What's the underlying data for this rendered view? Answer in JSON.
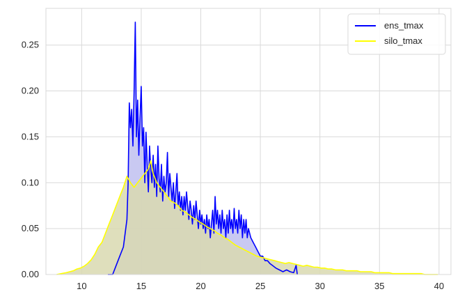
{
  "chart_data": {
    "type": "area",
    "title": "",
    "xlabel": "",
    "ylabel": "",
    "xlim": [
      7,
      41
    ],
    "ylim": [
      0,
      0.29
    ],
    "xticks": [
      10,
      15,
      20,
      25,
      30,
      35,
      40
    ],
    "yticks": [
      0.0,
      0.05,
      0.1,
      0.15,
      0.2,
      0.25
    ],
    "xtick_labels": [
      "10",
      "15",
      "20",
      "25",
      "30",
      "35",
      "40"
    ],
    "ytick_labels": [
      "0.00",
      "0.05",
      "0.10",
      "0.15",
      "0.20",
      "0.25"
    ],
    "grid": true,
    "legend_position": "top-right",
    "series": [
      {
        "name": "ens_tmax",
        "color": "#0000ff",
        "fill_color": "#bfbff0",
        "points": [
          [
            12.2,
            0.0
          ],
          [
            12.6,
            0.0
          ],
          [
            12.9,
            0.01
          ],
          [
            13.2,
            0.02
          ],
          [
            13.5,
            0.03
          ],
          [
            13.8,
            0.06
          ],
          [
            13.9,
            0.1
          ],
          [
            14.0,
            0.187
          ],
          [
            14.1,
            0.16
          ],
          [
            14.2,
            0.18
          ],
          [
            14.3,
            0.14
          ],
          [
            14.4,
            0.2
          ],
          [
            14.5,
            0.275
          ],
          [
            14.6,
            0.15
          ],
          [
            14.7,
            0.19
          ],
          [
            14.8,
            0.13
          ],
          [
            14.9,
            0.17
          ],
          [
            15.0,
            0.205
          ],
          [
            15.1,
            0.14
          ],
          [
            15.2,
            0.16
          ],
          [
            15.3,
            0.1
          ],
          [
            15.4,
            0.155
          ],
          [
            15.5,
            0.12
          ],
          [
            15.6,
            0.09
          ],
          [
            15.7,
            0.14
          ],
          [
            15.8,
            0.115
          ],
          [
            15.9,
            0.1
          ],
          [
            16.0,
            0.13
          ],
          [
            16.1,
            0.095
          ],
          [
            16.2,
            0.12
          ],
          [
            16.3,
            0.085
          ],
          [
            16.4,
            0.14
          ],
          [
            16.5,
            0.105
          ],
          [
            16.6,
            0.09
          ],
          [
            16.7,
            0.12
          ],
          [
            16.8,
            0.08
          ],
          [
            16.9,
            0.107
          ],
          [
            17.0,
            0.09
          ],
          [
            17.1,
            0.1
          ],
          [
            17.2,
            0.133
          ],
          [
            17.3,
            0.085
          ],
          [
            17.4,
            0.11
          ],
          [
            17.5,
            0.095
          ],
          [
            17.6,
            0.08
          ],
          [
            17.7,
            0.1
          ],
          [
            17.8,
            0.072
          ],
          [
            17.9,
            0.09
          ],
          [
            18.0,
            0.11
          ],
          [
            18.1,
            0.075
          ],
          [
            18.2,
            0.09
          ],
          [
            18.3,
            0.07
          ],
          [
            18.4,
            0.085
          ],
          [
            18.5,
            0.065
          ],
          [
            18.6,
            0.085
          ],
          [
            18.7,
            0.07
          ],
          [
            18.8,
            0.09
          ],
          [
            18.9,
            0.075
          ],
          [
            19.0,
            0.06
          ],
          [
            19.1,
            0.08
          ],
          [
            19.2,
            0.07
          ],
          [
            19.3,
            0.055
          ],
          [
            19.4,
            0.075
          ],
          [
            19.5,
            0.06
          ],
          [
            19.6,
            0.08
          ],
          [
            19.7,
            0.065
          ],
          [
            19.8,
            0.05
          ],
          [
            19.9,
            0.07
          ],
          [
            20.0,
            0.055
          ],
          [
            20.1,
            0.065
          ],
          [
            20.2,
            0.05
          ],
          [
            20.3,
            0.06
          ],
          [
            20.4,
            0.045
          ],
          [
            20.5,
            0.065
          ],
          [
            20.6,
            0.05
          ],
          [
            20.7,
            0.06
          ],
          [
            20.8,
            0.04
          ],
          [
            20.9,
            0.055
          ],
          [
            21.0,
            0.07
          ],
          [
            21.1,
            0.045
          ],
          [
            21.2,
            0.085
          ],
          [
            21.3,
            0.055
          ],
          [
            21.4,
            0.07
          ],
          [
            21.5,
            0.05
          ],
          [
            21.6,
            0.065
          ],
          [
            21.7,
            0.045
          ],
          [
            21.8,
            0.07
          ],
          [
            21.9,
            0.05
          ],
          [
            22.0,
            0.06
          ],
          [
            22.1,
            0.04
          ],
          [
            22.2,
            0.065
          ],
          [
            22.3,
            0.045
          ],
          [
            22.4,
            0.07
          ],
          [
            22.5,
            0.05
          ],
          [
            22.6,
            0.06
          ],
          [
            22.7,
            0.045
          ],
          [
            22.8,
            0.072
          ],
          [
            22.9,
            0.05
          ],
          [
            23.0,
            0.06
          ],
          [
            23.1,
            0.045
          ],
          [
            23.2,
            0.07
          ],
          [
            23.3,
            0.05
          ],
          [
            23.4,
            0.065
          ],
          [
            23.5,
            0.04
          ],
          [
            23.6,
            0.06
          ],
          [
            23.7,
            0.045
          ],
          [
            23.8,
            0.06
          ],
          [
            23.9,
            0.04
          ],
          [
            24.0,
            0.05
          ],
          [
            24.2,
            0.04
          ],
          [
            24.4,
            0.035
          ],
          [
            24.6,
            0.03
          ],
          [
            24.8,
            0.025
          ],
          [
            25.0,
            0.02
          ],
          [
            25.2,
            0.02
          ],
          [
            25.4,
            0.015
          ],
          [
            25.6,
            0.015
          ],
          [
            25.8,
            0.012
          ],
          [
            26.0,
            0.01
          ],
          [
            26.3,
            0.007
          ],
          [
            26.6,
            0.005
          ],
          [
            26.9,
            0.003
          ],
          [
            27.2,
            0.005
          ],
          [
            27.5,
            0.003
          ],
          [
            27.8,
            0.002
          ],
          [
            28.0,
            0.01
          ],
          [
            28.1,
            0.0
          ]
        ]
      },
      {
        "name": "silo_tmax",
        "color": "#ffff00",
        "fill_color": "#d9d9b0",
        "points": [
          [
            7.9,
            0.0
          ],
          [
            8.3,
            0.001
          ],
          [
            8.7,
            0.002
          ],
          [
            9.0,
            0.003
          ],
          [
            9.3,
            0.004
          ],
          [
            9.6,
            0.006
          ],
          [
            9.9,
            0.007
          ],
          [
            10.2,
            0.009
          ],
          [
            10.5,
            0.012
          ],
          [
            10.8,
            0.016
          ],
          [
            11.1,
            0.022
          ],
          [
            11.4,
            0.03
          ],
          [
            11.7,
            0.035
          ],
          [
            12.0,
            0.045
          ],
          [
            12.3,
            0.055
          ],
          [
            12.6,
            0.065
          ],
          [
            12.9,
            0.075
          ],
          [
            13.2,
            0.085
          ],
          [
            13.5,
            0.095
          ],
          [
            13.8,
            0.107
          ],
          [
            14.1,
            0.1
          ],
          [
            14.4,
            0.095
          ],
          [
            14.7,
            0.1
          ],
          [
            15.0,
            0.105
          ],
          [
            15.3,
            0.11
          ],
          [
            15.6,
            0.115
          ],
          [
            15.8,
            0.124
          ],
          [
            16.0,
            0.11
          ],
          [
            16.3,
            0.1
          ],
          [
            16.6,
            0.095
          ],
          [
            16.9,
            0.09
          ],
          [
            17.2,
            0.085
          ],
          [
            17.5,
            0.08
          ],
          [
            17.8,
            0.078
          ],
          [
            18.1,
            0.075
          ],
          [
            18.4,
            0.07
          ],
          [
            18.7,
            0.068
          ],
          [
            19.0,
            0.065
          ],
          [
            19.3,
            0.062
          ],
          [
            19.6,
            0.06
          ],
          [
            19.9,
            0.057
          ],
          [
            20.2,
            0.055
          ],
          [
            20.5,
            0.052
          ],
          [
            20.8,
            0.05
          ],
          [
            21.1,
            0.048
          ],
          [
            21.4,
            0.045
          ],
          [
            21.7,
            0.043
          ],
          [
            22.0,
            0.04
          ],
          [
            22.3,
            0.038
          ],
          [
            22.6,
            0.035
          ],
          [
            22.9,
            0.032
          ],
          [
            23.2,
            0.03
          ],
          [
            23.5,
            0.028
          ],
          [
            23.8,
            0.026
          ],
          [
            24.1,
            0.024
          ],
          [
            24.4,
            0.022
          ],
          [
            24.7,
            0.02
          ],
          [
            25.0,
            0.019
          ],
          [
            25.3,
            0.018
          ],
          [
            25.6,
            0.017
          ],
          [
            25.9,
            0.016
          ],
          [
            26.2,
            0.015
          ],
          [
            26.5,
            0.014
          ],
          [
            26.8,
            0.013
          ],
          [
            27.1,
            0.012
          ],
          [
            27.4,
            0.013
          ],
          [
            27.7,
            0.012
          ],
          [
            28.0,
            0.011
          ],
          [
            28.3,
            0.01
          ],
          [
            28.6,
            0.009
          ],
          [
            28.9,
            0.01
          ],
          [
            29.2,
            0.009
          ],
          [
            29.5,
            0.008
          ],
          [
            29.8,
            0.008
          ],
          [
            30.1,
            0.007
          ],
          [
            30.4,
            0.007
          ],
          [
            30.7,
            0.006
          ],
          [
            31.0,
            0.006
          ],
          [
            31.3,
            0.005
          ],
          [
            31.6,
            0.005
          ],
          [
            31.9,
            0.005
          ],
          [
            32.2,
            0.004
          ],
          [
            32.5,
            0.004
          ],
          [
            32.8,
            0.004
          ],
          [
            33.1,
            0.004
          ],
          [
            33.4,
            0.003
          ],
          [
            33.7,
            0.003
          ],
          [
            34.0,
            0.003
          ],
          [
            34.3,
            0.003
          ],
          [
            34.6,
            0.002
          ],
          [
            34.9,
            0.002
          ],
          [
            35.2,
            0.002
          ],
          [
            35.5,
            0.002
          ],
          [
            35.8,
            0.002
          ],
          [
            36.1,
            0.001
          ],
          [
            36.4,
            0.001
          ],
          [
            36.7,
            0.001
          ],
          [
            37.0,
            0.001
          ],
          [
            37.3,
            0.001
          ],
          [
            37.6,
            0.001
          ],
          [
            37.9,
            0.001
          ],
          [
            38.2,
            0.001
          ],
          [
            38.5,
            0.001
          ],
          [
            38.8,
            0.0
          ],
          [
            39.1,
            0.0
          ],
          [
            39.4,
            0.0
          ],
          [
            39.7,
            0.0
          ],
          [
            39.9,
            0.0
          ]
        ]
      }
    ],
    "legend": [
      {
        "label": "ens_tmax",
        "color": "#0000ff"
      },
      {
        "label": "silo_tmax",
        "color": "#ffff00"
      }
    ]
  }
}
